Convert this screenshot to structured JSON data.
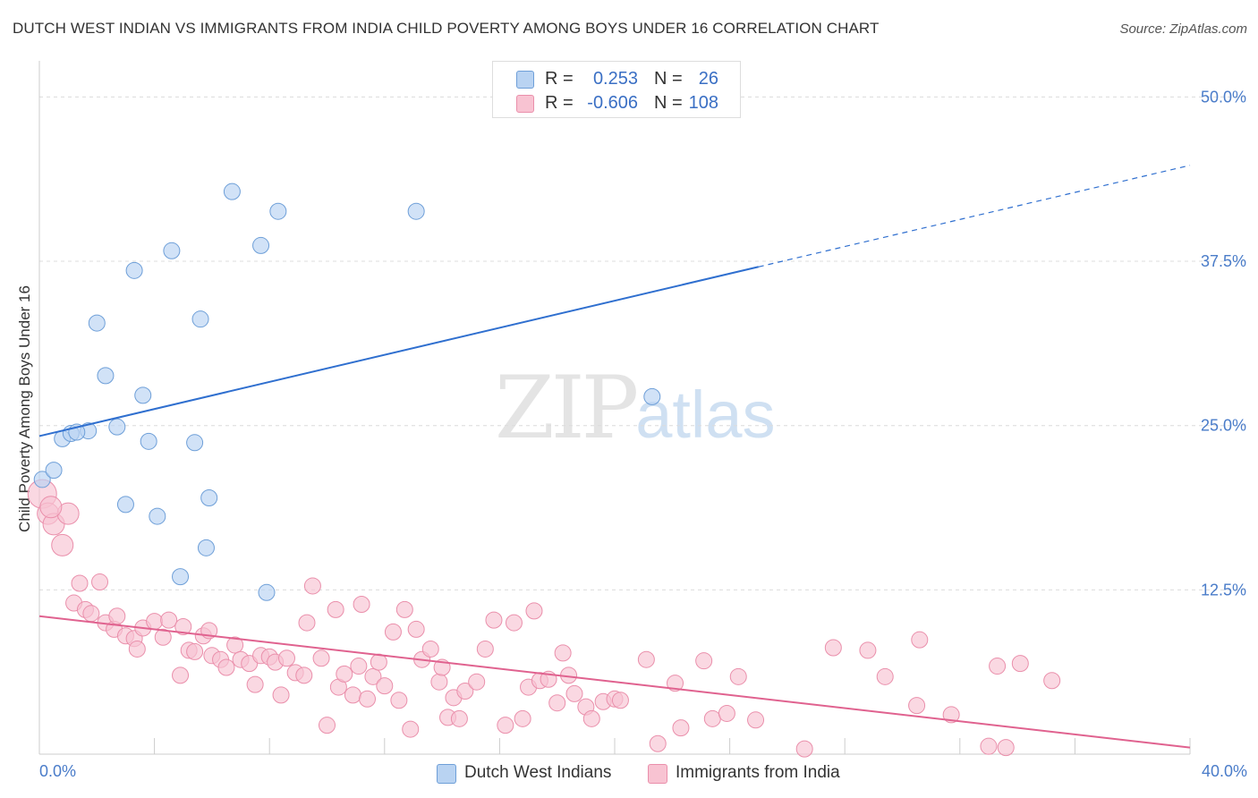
{
  "header": {
    "title": "DUTCH WEST INDIAN VS IMMIGRANTS FROM INDIA CHILD POVERTY AMONG BOYS UNDER 16 CORRELATION CHART",
    "source": "Source: ZipAtlas.com"
  },
  "watermark": {
    "zip": "ZIP",
    "atlas": "atlas"
  },
  "legend_top": {
    "rows": [
      {
        "r_label": "R =",
        "r_value": "0.253",
        "n_label": "N =",
        "n_value": "26"
      },
      {
        "r_label": "R =",
        "r_value": "-0.606",
        "n_label": "N =",
        "n_value": "108"
      }
    ]
  },
  "legend_bottom": {
    "items": [
      {
        "label": "Dutch West Indians"
      },
      {
        "label": "Immigrants from India"
      }
    ]
  },
  "colors": {
    "blue_fill": "#b9d3f2",
    "blue_stroke": "#6e9fd8",
    "blue_line": "#2f6fcf",
    "pink_fill": "#f8c3d2",
    "pink_stroke": "#ea8fab",
    "pink_line": "#e0628f",
    "tick_text": "#4a7cc9",
    "value_blue": "#3a6fc4",
    "value_pink": "#3a6fc4"
  },
  "chart_data": {
    "type": "scatter",
    "title": "DUTCH WEST INDIAN VS IMMIGRANTS FROM INDIA CHILD POVERTY AMONG BOYS UNDER 16 CORRELATION CHART",
    "xlabel": "",
    "ylabel": "Child Poverty Among Boys Under 16",
    "xlim": [
      0,
      40
    ],
    "ylim": [
      0,
      52
    ],
    "x_tick_labels": [
      "0.0%",
      "40.0%"
    ],
    "y_ticks": [
      12.5,
      25.0,
      37.5,
      50.0
    ],
    "y_tick_labels": [
      "12.5%",
      "25.0%",
      "37.5%",
      "50.0%"
    ],
    "grid": true,
    "legend_position": "top-center",
    "series": [
      {
        "name": "Dutch West Indians",
        "points": [
          [
            0.1,
            20.9
          ],
          [
            0.5,
            21.6
          ],
          [
            0.8,
            24.0
          ],
          [
            1.1,
            24.4
          ],
          [
            1.7,
            24.6
          ],
          [
            1.3,
            24.5
          ],
          [
            2.7,
            24.9
          ],
          [
            3.6,
            27.3
          ],
          [
            3.8,
            23.8
          ],
          [
            2.3,
            28.8
          ],
          [
            2.0,
            32.8
          ],
          [
            3.3,
            36.8
          ],
          [
            4.6,
            38.3
          ],
          [
            5.6,
            33.1
          ],
          [
            6.7,
            42.8
          ],
          [
            7.7,
            38.7
          ],
          [
            8.3,
            41.3
          ],
          [
            13.1,
            41.3
          ],
          [
            21.3,
            27.2
          ],
          [
            3.0,
            19.0
          ],
          [
            4.1,
            18.1
          ],
          [
            5.9,
            19.5
          ],
          [
            5.8,
            15.7
          ],
          [
            4.9,
            13.5
          ],
          [
            7.9,
            12.3
          ],
          [
            5.4,
            23.7
          ]
        ],
        "trend": {
          "x": [
            0,
            40
          ],
          "y": [
            24.2,
            44.8
          ],
          "solid_until_x": 25.0
        }
      },
      {
        "name": "Immigrants from India",
        "points": [
          [
            0.1,
            19.8
          ],
          [
            0.3,
            18.3
          ],
          [
            0.5,
            17.5
          ],
          [
            1.0,
            18.3
          ],
          [
            0.8,
            15.9
          ],
          [
            1.4,
            13.0
          ],
          [
            2.1,
            13.1
          ],
          [
            1.2,
            11.5
          ],
          [
            1.6,
            11.0
          ],
          [
            1.8,
            10.7
          ],
          [
            2.3,
            10.0
          ],
          [
            2.6,
            9.5
          ],
          [
            2.7,
            10.5
          ],
          [
            3.0,
            9.0
          ],
          [
            3.3,
            8.8
          ],
          [
            3.4,
            8.0
          ],
          [
            3.6,
            9.6
          ],
          [
            4.0,
            10.1
          ],
          [
            4.3,
            8.9
          ],
          [
            4.5,
            10.2
          ],
          [
            4.9,
            6.0
          ],
          [
            5.0,
            9.7
          ],
          [
            5.2,
            7.9
          ],
          [
            5.4,
            7.8
          ],
          [
            5.7,
            9.0
          ],
          [
            5.9,
            9.4
          ],
          [
            6.0,
            7.5
          ],
          [
            6.3,
            7.2
          ],
          [
            6.5,
            6.6
          ],
          [
            6.8,
            8.3
          ],
          [
            7.0,
            7.2
          ],
          [
            7.3,
            6.9
          ],
          [
            7.5,
            5.3
          ],
          [
            7.7,
            7.5
          ],
          [
            8.0,
            7.4
          ],
          [
            8.2,
            7.0
          ],
          [
            8.4,
            4.5
          ],
          [
            8.6,
            7.3
          ],
          [
            8.9,
            6.2
          ],
          [
            9.2,
            6.0
          ],
          [
            9.3,
            10.0
          ],
          [
            9.5,
            12.8
          ],
          [
            9.8,
            7.3
          ],
          [
            10.0,
            2.2
          ],
          [
            10.3,
            11.0
          ],
          [
            10.4,
            5.1
          ],
          [
            10.6,
            6.1
          ],
          [
            10.9,
            4.5
          ],
          [
            11.1,
            6.7
          ],
          [
            11.2,
            11.4
          ],
          [
            11.4,
            4.2
          ],
          [
            11.6,
            5.9
          ],
          [
            11.8,
            7.0
          ],
          [
            12.0,
            5.2
          ],
          [
            12.3,
            9.3
          ],
          [
            12.5,
            4.1
          ],
          [
            12.7,
            11.0
          ],
          [
            12.9,
            1.9
          ],
          [
            13.1,
            9.5
          ],
          [
            13.3,
            7.2
          ],
          [
            13.6,
            8.0
          ],
          [
            13.9,
            5.5
          ],
          [
            14.0,
            6.6
          ],
          [
            14.2,
            2.8
          ],
          [
            14.4,
            4.3
          ],
          [
            14.6,
            2.7
          ],
          [
            14.8,
            4.8
          ],
          [
            15.2,
            5.5
          ],
          [
            15.5,
            8.0
          ],
          [
            15.8,
            10.2
          ],
          [
            16.2,
            2.2
          ],
          [
            16.5,
            10.0
          ],
          [
            16.8,
            2.7
          ],
          [
            17.0,
            5.1
          ],
          [
            17.2,
            10.9
          ],
          [
            17.4,
            5.6
          ],
          [
            17.7,
            5.7
          ],
          [
            18.0,
            3.9
          ],
          [
            18.2,
            7.7
          ],
          [
            18.4,
            6.0
          ],
          [
            18.6,
            4.6
          ],
          [
            19.0,
            3.6
          ],
          [
            19.2,
            2.7
          ],
          [
            19.6,
            4.0
          ],
          [
            20.0,
            4.2
          ],
          [
            20.2,
            4.1
          ],
          [
            21.1,
            7.2
          ],
          [
            21.5,
            0.8
          ],
          [
            22.1,
            5.4
          ],
          [
            22.3,
            2.0
          ],
          [
            23.1,
            7.1
          ],
          [
            23.4,
            2.7
          ],
          [
            23.9,
            3.1
          ],
          [
            24.3,
            5.9
          ],
          [
            24.9,
            2.6
          ],
          [
            26.6,
            0.4
          ],
          [
            27.6,
            8.1
          ],
          [
            28.8,
            7.9
          ],
          [
            29.4,
            5.9
          ],
          [
            30.5,
            3.7
          ],
          [
            30.6,
            8.7
          ],
          [
            31.7,
            3.0
          ],
          [
            33.0,
            0.6
          ],
          [
            33.3,
            6.7
          ],
          [
            33.6,
            0.5
          ],
          [
            34.1,
            6.9
          ],
          [
            35.2,
            5.6
          ],
          [
            0.4,
            18.8
          ]
        ],
        "trend": {
          "x": [
            0,
            40
          ],
          "y": [
            10.5,
            0.5
          ]
        }
      }
    ]
  }
}
